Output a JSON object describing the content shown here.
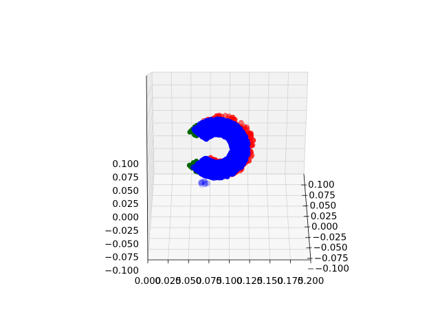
{
  "chart_data": {
    "type": "scatter",
    "projection": "3d",
    "grid": true,
    "axes": {
      "x": {
        "ticks": [
          "0.000",
          "0.025",
          "0.050",
          "0.075",
          "0.100",
          "0.125",
          "0.150",
          "0.175",
          "0.200"
        ]
      },
      "y": {
        "ticks": [
          "−0.100",
          "−0.075",
          "−0.050",
          "−0.025",
          "0.000",
          "0.025",
          "0.050",
          "0.075",
          "0.100"
        ]
      },
      "z": {
        "ticks": [
          "−0.100",
          "−0.075",
          "−0.050",
          "−0.025",
          "0.000",
          "0.025",
          "0.050",
          "0.075",
          "0.100"
        ]
      }
    },
    "series": [
      {
        "color": "#ff0000",
        "marker": "o",
        "shape": "arc"
      },
      {
        "color": "#0000ff",
        "marker": "o",
        "shape": "arc"
      },
      {
        "color": "#006400",
        "marker": "o",
        "shape": "arc-ends"
      }
    ]
  }
}
